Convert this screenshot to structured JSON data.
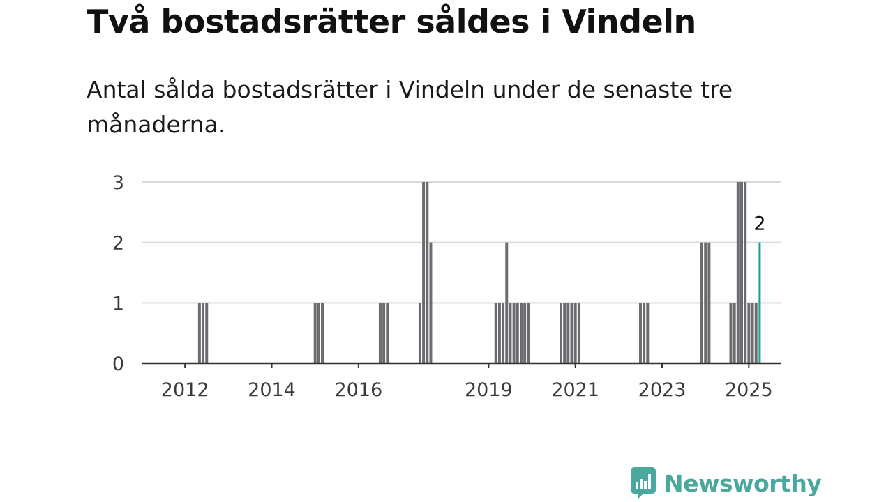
{
  "title": "Två bostadsrätter såldes i Vindeln",
  "subtitle": "Antal sålda bostadsrätter i Vindeln under de senaste tre månaderna.",
  "brand": {
    "name": "Newsworthy",
    "color": "#4aa89e",
    "icon": "newsworthy-logo-icon"
  },
  "chart_data": {
    "type": "bar",
    "title": "",
    "xlabel": "",
    "ylabel": "",
    "ylim": [
      0,
      3
    ],
    "yticks": [
      0,
      1,
      2,
      3
    ],
    "xticks": [
      "2012",
      "2014",
      "2016",
      "2019",
      "2021",
      "2023",
      "2025"
    ],
    "grid": true,
    "bar_color": "#6b6b70",
    "highlight_color": "#1a9e96",
    "highlight_label": "2",
    "series": [
      {
        "values": [
          {
            "x": "2012-05",
            "y": 1
          },
          {
            "x": "2012-06",
            "y": 1
          },
          {
            "x": "2012-07",
            "y": 1
          },
          {
            "x": "2015-01",
            "y": 1
          },
          {
            "x": "2015-02",
            "y": 1
          },
          {
            "x": "2015-03",
            "y": 1
          },
          {
            "x": "2016-07",
            "y": 1
          },
          {
            "x": "2016-08",
            "y": 1
          },
          {
            "x": "2016-09",
            "y": 1
          },
          {
            "x": "2017-06",
            "y": 1
          },
          {
            "x": "2017-07",
            "y": 3
          },
          {
            "x": "2017-08",
            "y": 3
          },
          {
            "x": "2017-09",
            "y": 2
          },
          {
            "x": "2019-03",
            "y": 1
          },
          {
            "x": "2019-04",
            "y": 1
          },
          {
            "x": "2019-05",
            "y": 1
          },
          {
            "x": "2019-06",
            "y": 2
          },
          {
            "x": "2019-07",
            "y": 1
          },
          {
            "x": "2019-08",
            "y": 1
          },
          {
            "x": "2019-09",
            "y": 1
          },
          {
            "x": "2019-10",
            "y": 1
          },
          {
            "x": "2019-11",
            "y": 1
          },
          {
            "x": "2019-12",
            "y": 1
          },
          {
            "x": "2020-09",
            "y": 1
          },
          {
            "x": "2020-10",
            "y": 1
          },
          {
            "x": "2020-11",
            "y": 1
          },
          {
            "x": "2020-12",
            "y": 1
          },
          {
            "x": "2021-01",
            "y": 1
          },
          {
            "x": "2021-02",
            "y": 1
          },
          {
            "x": "2022-07",
            "y": 1
          },
          {
            "x": "2022-08",
            "y": 1
          },
          {
            "x": "2022-09",
            "y": 1
          },
          {
            "x": "2023-12",
            "y": 2
          },
          {
            "x": "2024-01",
            "y": 2
          },
          {
            "x": "2024-02",
            "y": 2
          },
          {
            "x": "2024-08",
            "y": 1
          },
          {
            "x": "2024-09",
            "y": 1
          },
          {
            "x": "2024-10",
            "y": 3
          },
          {
            "x": "2024-11",
            "y": 3
          },
          {
            "x": "2024-12",
            "y": 3
          },
          {
            "x": "2025-01",
            "y": 1
          },
          {
            "x": "2025-02",
            "y": 1
          },
          {
            "x": "2025-03",
            "y": 1
          },
          {
            "x": "2025-04",
            "y": 2
          }
        ]
      }
    ]
  }
}
